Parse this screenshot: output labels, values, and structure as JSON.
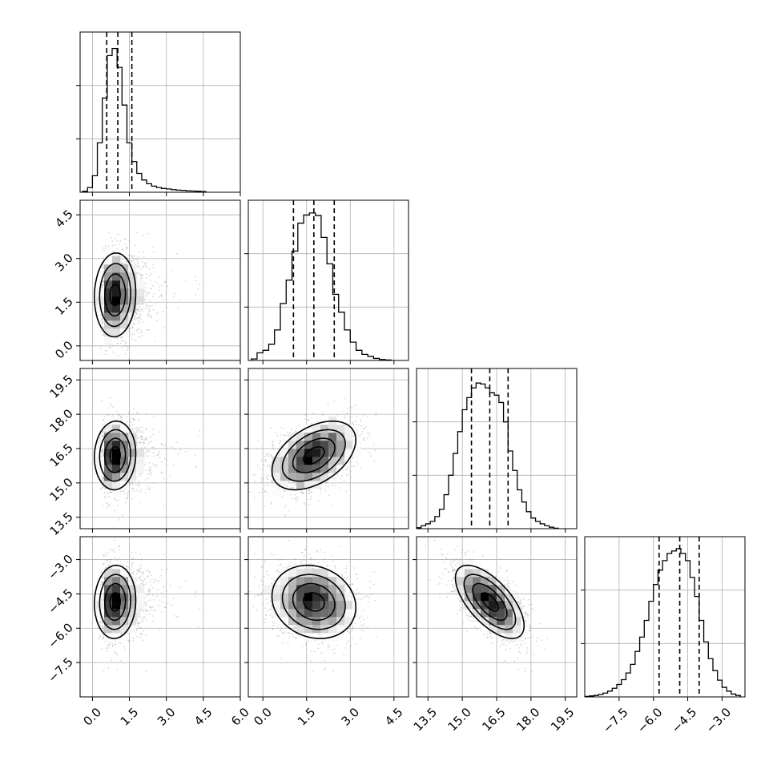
{
  "chart_data": {
    "type": "corner",
    "grid": true,
    "n_params": 4,
    "params": [
      {
        "range": [
          -0.5,
          6.0
        ],
        "ticks": [
          0.0,
          1.5,
          3.0,
          4.5,
          6.0
        ],
        "tick_labels": [
          "0.0",
          "1.5",
          "3.0",
          "4.5",
          "6.0"
        ],
        "median": 1.0,
        "sd": 0.5,
        "skew": 1.0,
        "quantiles": [
          0.58,
          1.03,
          1.6
        ],
        "hist_x": [
          -0.3,
          -0.1,
          0.1,
          0.3,
          0.5,
          0.7,
          0.9,
          1.1,
          1.3,
          1.5,
          1.7,
          1.9,
          2.1,
          2.3,
          2.5,
          2.7,
          2.9,
          3.1,
          3.3,
          3.5,
          3.7,
          3.9,
          4.1,
          4.3,
          4.5
        ],
        "hist_counts": [
          0.2,
          1.0,
          3.5,
          10.5,
          20.0,
          29.0,
          30.5,
          26.5,
          18.5,
          10.5,
          6.5,
          4.0,
          2.6,
          1.8,
          1.3,
          1.0,
          0.8,
          0.7,
          0.55,
          0.45,
          0.4,
          0.3,
          0.25,
          0.2,
          0.15
        ],
        "hist_ymax": 34
      },
      {
        "range": [
          -0.5,
          5.0
        ],
        "ticks": [
          0.0,
          1.5,
          3.0,
          4.5
        ],
        "tick_labels": [
          "0.0",
          "1.5",
          "3.0",
          "4.5"
        ],
        "median": 1.75,
        "sd": 0.72,
        "skew": 0,
        "quantiles": [
          1.05,
          1.75,
          2.45
        ],
        "hist_x": [
          -0.3,
          -0.1,
          0.1,
          0.3,
          0.5,
          0.7,
          0.9,
          1.1,
          1.3,
          1.5,
          1.7,
          1.9,
          2.1,
          2.3,
          2.5,
          2.7,
          2.9,
          3.1,
          3.3,
          3.5,
          3.7,
          3.9,
          4.1,
          4.3
        ],
        "hist_counts": [
          0.3,
          1.5,
          2.0,
          3.2,
          6.0,
          11.2,
          15.8,
          21.5,
          27.0,
          28.6,
          29.0,
          28.5,
          24.2,
          19.0,
          13.0,
          9.5,
          6.0,
          3.6,
          2.0,
          1.2,
          0.8,
          0.4,
          0.2,
          0.1
        ],
        "hist_ymax": 31.5
      },
      {
        "range": [
          13.0,
          20.0
        ],
        "ticks": [
          13.5,
          15.0,
          16.5,
          18.0,
          19.5
        ],
        "tick_labels": [
          "13.5",
          "15.0",
          "16.5",
          "18.0",
          "19.5"
        ],
        "median": 16.2,
        "sd": 0.75,
        "skew": 0,
        "quantiles": [
          15.4,
          16.2,
          17.0
        ],
        "hist_x": [
          13.1,
          13.3,
          13.5,
          13.7,
          13.9,
          14.1,
          14.3,
          14.5,
          14.7,
          14.9,
          15.1,
          15.3,
          15.5,
          15.7,
          15.9,
          16.1,
          16.3,
          16.5,
          16.7,
          16.9,
          17.1,
          17.3,
          17.5,
          17.7,
          17.9,
          18.1,
          18.3,
          18.5,
          18.7,
          18.9,
          19.1
        ],
        "hist_counts": [
          0.2,
          0.6,
          1.0,
          1.5,
          2.5,
          4.0,
          7.0,
          11.0,
          15.5,
          20.0,
          24.5,
          27.0,
          29.0,
          30.0,
          29.8,
          29.0,
          28.0,
          27.5,
          26.0,
          22.0,
          16.0,
          12.0,
          8.0,
          5.5,
          3.5,
          2.2,
          1.5,
          1.0,
          0.6,
          0.3,
          0.1
        ],
        "hist_ymax": 33
      },
      {
        "range": [
          -9.0,
          -2.0
        ],
        "ticks": [
          -7.5,
          -6.0,
          -4.5,
          -3.0
        ],
        "tick_labels": [
          "−7.5",
          "−6.0",
          "−4.5",
          "−3.0"
        ],
        "median": -4.85,
        "sd": 0.8,
        "skew": 0,
        "quantiles": [
          -5.75,
          -4.85,
          -4.0
        ],
        "hist_x": [
          -8.9,
          -8.7,
          -8.5,
          -8.3,
          -8.1,
          -7.9,
          -7.7,
          -7.5,
          -7.3,
          -7.1,
          -6.9,
          -6.7,
          -6.5,
          -6.3,
          -6.1,
          -5.9,
          -5.7,
          -5.5,
          -5.3,
          -5.1,
          -4.9,
          -4.7,
          -4.5,
          -4.3,
          -4.1,
          -3.9,
          -3.7,
          -3.5,
          -3.3,
          -3.1,
          -2.9,
          -2.7,
          -2.5,
          -2.3
        ],
        "hist_counts": [
          0.1,
          0.2,
          0.3,
          0.5,
          0.8,
          1.2,
          1.8,
          2.6,
          3.6,
          5.0,
          6.8,
          9.5,
          12.5,
          16.0,
          20.0,
          23.5,
          26.5,
          28.5,
          30.0,
          30.5,
          31.0,
          30.0,
          28.5,
          25.0,
          21.0,
          16.0,
          11.5,
          8.0,
          5.5,
          3.5,
          2.0,
          1.2,
          0.6,
          0.3
        ],
        "hist_ymax": 33.5
      }
    ],
    "correlations": [
      [
        1,
        0.05,
        0.05,
        0.05
      ],
      [
        0.05,
        1,
        0.45,
        -0.15
      ],
      [
        0.05,
        0.45,
        1,
        -0.65
      ],
      [
        0.05,
        -0.15,
        -0.65,
        1
      ]
    ]
  }
}
